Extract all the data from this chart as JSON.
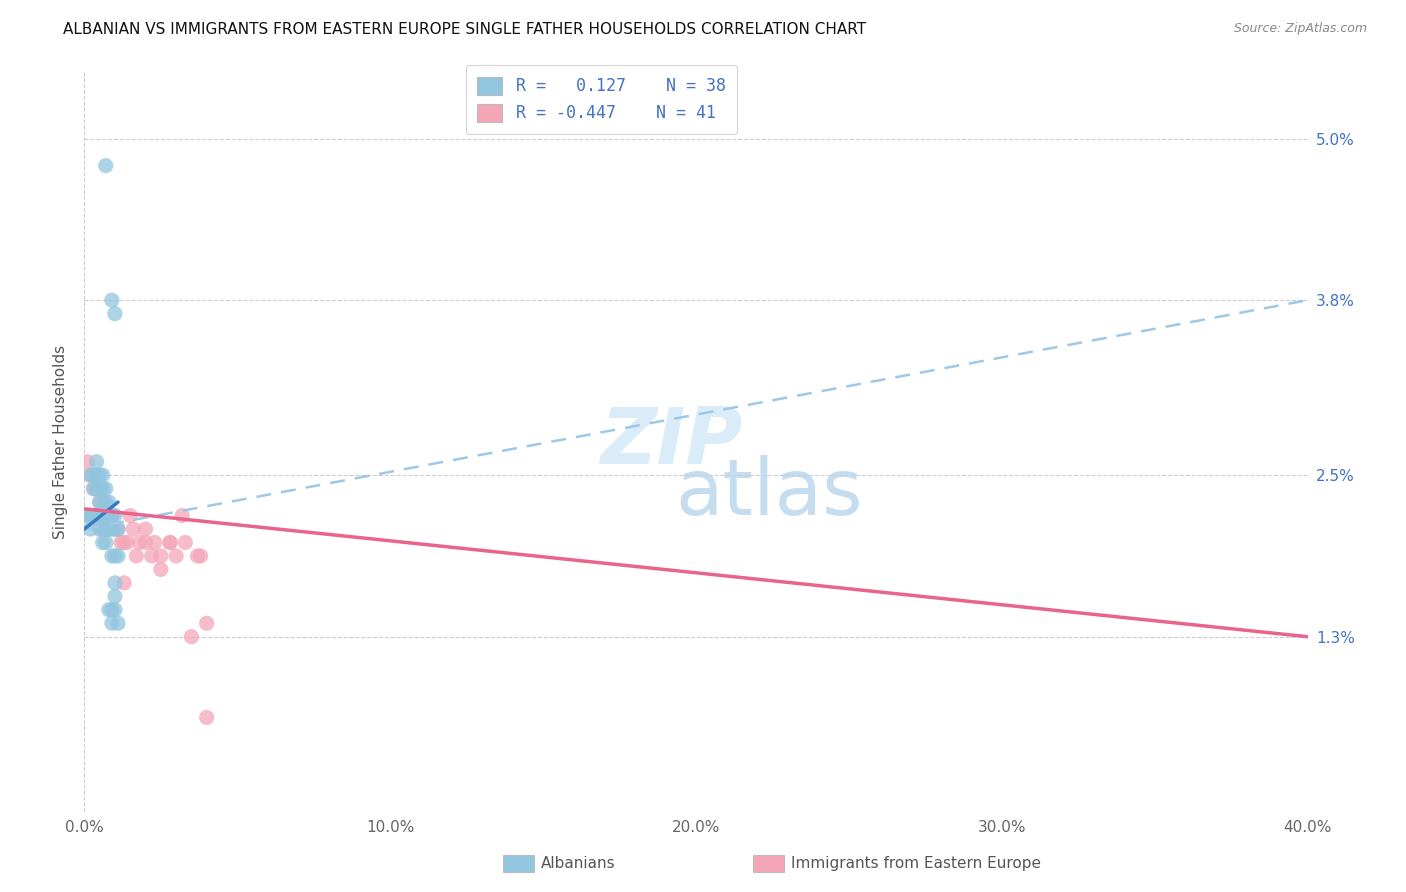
{
  "title": "ALBANIAN VS IMMIGRANTS FROM EASTERN EUROPE SINGLE FATHER HOUSEHOLDS CORRELATION CHART",
  "source": "Source: ZipAtlas.com",
  "ylabel": "Single Father Households",
  "xmin": 0.0,
  "xmax": 0.4,
  "ymin": 0.0,
  "ymax": 0.055,
  "yticks": [
    0.013,
    0.025,
    0.038,
    0.05
  ],
  "ytick_labels": [
    "1.3%",
    "2.5%",
    "3.8%",
    "5.0%"
  ],
  "albanian_color": "#92c5de",
  "eastern_color": "#f4a6b8",
  "trendline1_color": "#3a7abf",
  "trendline2_color": "#e8648a",
  "trendline1_dash_color": "#9ec8e8",
  "albanian_x": [
    0.001,
    0.002,
    0.002,
    0.002,
    0.003,
    0.003,
    0.003,
    0.004,
    0.004,
    0.004,
    0.004,
    0.005,
    0.005,
    0.005,
    0.005,
    0.005,
    0.006,
    0.006,
    0.006,
    0.006,
    0.006,
    0.006,
    0.007,
    0.007,
    0.007,
    0.007,
    0.007,
    0.008,
    0.008,
    0.008,
    0.009,
    0.009,
    0.009,
    0.01,
    0.01,
    0.01,
    0.011,
    0.011
  ],
  "albanian_y": [
    0.022,
    0.025,
    0.022,
    0.021,
    0.025,
    0.024,
    0.022,
    0.026,
    0.025,
    0.024,
    0.022,
    0.025,
    0.024,
    0.023,
    0.022,
    0.021,
    0.025,
    0.024,
    0.023,
    0.022,
    0.021,
    0.02,
    0.024,
    0.023,
    0.022,
    0.021,
    0.02,
    0.023,
    0.022,
    0.021,
    0.022,
    0.021,
    0.019,
    0.022,
    0.021,
    0.019,
    0.021,
    0.019
  ],
  "albanian_outlier_x": [
    0.007,
    0.009,
    0.01,
    0.008,
    0.009,
    0.009,
    0.01,
    0.01,
    0.01,
    0.011
  ],
  "albanian_outlier_y": [
    0.048,
    0.038,
    0.037,
    0.015,
    0.015,
    0.014,
    0.017,
    0.016,
    0.015,
    0.014
  ],
  "eastern_x": [
    0.001,
    0.002,
    0.002,
    0.003,
    0.003,
    0.004,
    0.004,
    0.005,
    0.005,
    0.005,
    0.006,
    0.007,
    0.007,
    0.008,
    0.009,
    0.01,
    0.011,
    0.012,
    0.013,
    0.014,
    0.016,
    0.018,
    0.02,
    0.023,
    0.025,
    0.028,
    0.03,
    0.033,
    0.037,
    0.038,
    0.04,
    0.032,
    0.025,
    0.02,
    0.015,
    0.028,
    0.017,
    0.022,
    0.013,
    0.035,
    0.04
  ],
  "eastern_y": [
    0.026,
    0.025,
    0.022,
    0.024,
    0.022,
    0.024,
    0.022,
    0.023,
    0.022,
    0.021,
    0.022,
    0.022,
    0.021,
    0.021,
    0.022,
    0.021,
    0.021,
    0.02,
    0.02,
    0.02,
    0.021,
    0.02,
    0.021,
    0.02,
    0.019,
    0.02,
    0.019,
    0.02,
    0.019,
    0.019,
    0.014,
    0.022,
    0.018,
    0.02,
    0.022,
    0.02,
    0.019,
    0.019,
    0.017,
    0.013,
    0.007
  ],
  "trendline1_x0": 0.0,
  "trendline1_y0": 0.021,
  "trendline1_x1": 0.011,
  "trendline1_y1": 0.023,
  "trendline1_dash_x0": 0.0,
  "trendline1_dash_y0": 0.021,
  "trendline1_dash_x1": 0.4,
  "trendline1_dash_y1": 0.038,
  "trendline2_x0": 0.0,
  "trendline2_y0": 0.0225,
  "trendline2_x1": 0.4,
  "trendline2_y1": 0.013
}
